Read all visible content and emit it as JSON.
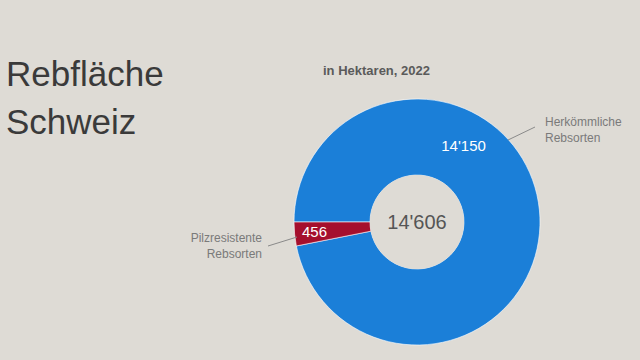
{
  "chart_data": {
    "type": "pie",
    "title": "Rebfläche Schweiz",
    "subtitle": "in Hektaren, 2022",
    "categories": [
      "Herkömmliche Rebsorten",
      "Pilzresistente Rebsorten"
    ],
    "values": [
      14150,
      456
    ],
    "value_labels": [
      "14'150",
      "456"
    ],
    "colors": [
      "#1b7fd8",
      "#a50f2d"
    ],
    "data_labels": true,
    "total": {
      "value": 14606,
      "label": "14'606"
    }
  }
}
